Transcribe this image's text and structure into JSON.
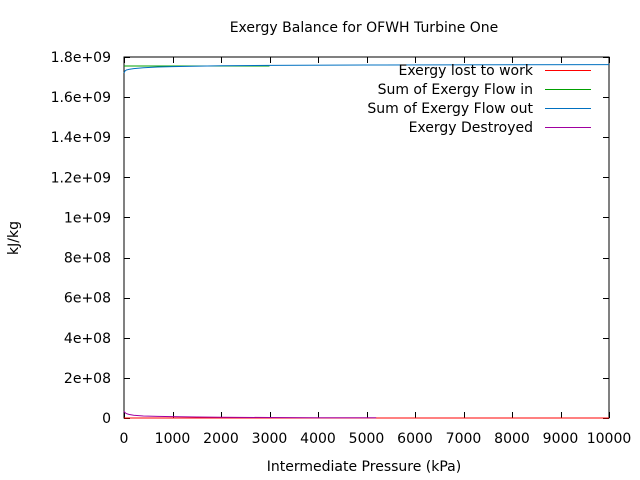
{
  "chart_data": {
    "type": "line",
    "title": "Exergy Balance for OFWH Turbine One",
    "xlabel": "Intermediate Pressure (kPa)",
    "ylabel": "kJ/kg",
    "xlim": [
      0,
      10000
    ],
    "ylim": [
      0,
      1800000000
    ],
    "x_ticks": [
      0,
      1000,
      2000,
      3000,
      4000,
      5000,
      6000,
      7000,
      8000,
      9000,
      10000
    ],
    "x_tick_labels": [
      "0",
      "1000",
      "2000",
      "3000",
      "4000",
      "5000",
      "6000",
      "7000",
      "8000",
      "9000",
      "10000"
    ],
    "y_ticks": [
      0,
      200000000,
      400000000,
      600000000,
      800000000,
      1000000000,
      1200000000,
      1400000000,
      1600000000,
      1800000000
    ],
    "y_tick_labels": [
      "0",
      "2e+08",
      "4e+08",
      "6e+08",
      "8e+08",
      "1e+09",
      "1.2e+09",
      "1.4e+09",
      "1.6e+09",
      "1.8e+09"
    ],
    "grid": false,
    "legend_position": "top-right",
    "series": [
      {
        "name": "Exergy lost to work",
        "color": "#ff0000",
        "x": [
          0,
          10000
        ],
        "y": [
          0,
          0
        ]
      },
      {
        "name": "Sum of Exergy Flow in",
        "color": "#00a000",
        "x": [
          0,
          500,
          1000,
          2000,
          3000
        ],
        "y": [
          1755000000,
          1755000000,
          1755000000,
          1755000000,
          1755000000
        ]
      },
      {
        "name": "Sum of Exergy Flow out",
        "color": "#0070c0",
        "x": [
          0,
          20,
          50,
          100,
          200,
          400,
          700,
          1000,
          2000,
          3000,
          5000,
          8000,
          10000
        ],
        "y": [
          1720000000,
          1730000000,
          1735000000,
          1738000000,
          1742000000,
          1746000000,
          1750000000,
          1752000000,
          1756000000,
          1758000000,
          1760000000,
          1761000000,
          1762000000
        ]
      },
      {
        "name": "Exergy Destroyed",
        "color": "#a000a0",
        "x": [
          0,
          20,
          50,
          100,
          200,
          400,
          700,
          1000,
          1500,
          2000,
          3000,
          4000,
          5200
        ],
        "y": [
          35000000,
          27000000,
          22000000,
          18000000,
          14000000,
          10000000,
          8000000,
          7000000,
          5000000,
          3500000,
          2500000,
          1500000,
          1000000
        ]
      }
    ]
  }
}
